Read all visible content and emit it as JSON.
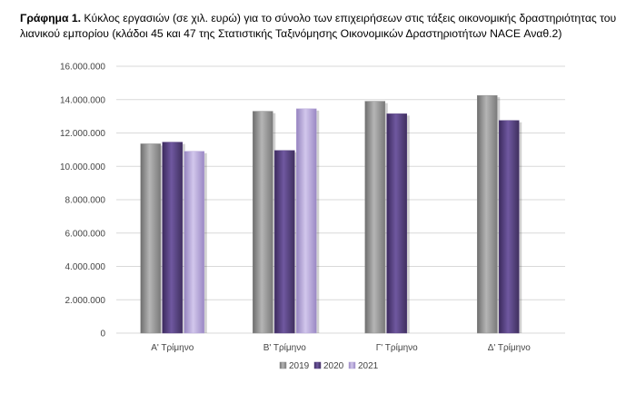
{
  "caption": {
    "label": "Γράφημα 1.",
    "text": "Κύκλος εργασιών (σε χιλ. ευρώ) για το σύνολο των επιχειρήσεων στις τάξεις οικονομικής δραστηριότητας του λιανικού εμπορίου (κλάδοι 45 και 47 της Στατιστικής Ταξινόμησης Οικονομικών Δραστηριοτήτων NACE Αναθ.2)"
  },
  "chart_data": {
    "type": "bar",
    "categories": [
      "Α' Τρίμηνο",
      "Β' Τρίμηνο",
      "Γ' Τρίμηνο",
      "Δ' Τρίμηνο"
    ],
    "series": [
      {
        "name": "2019",
        "color": "#8c8c8c",
        "values": [
          11350000,
          13300000,
          13900000,
          14250000
        ]
      },
      {
        "name": "2020",
        "color": "#5a4483",
        "values": [
          11450000,
          10950000,
          13150000,
          12750000
        ]
      },
      {
        "name": "2021",
        "color": "#b3a2d6",
        "values": [
          10900000,
          13450000,
          null,
          null
        ]
      }
    ],
    "ylim": [
      0,
      16000000
    ],
    "yticks": [
      "0",
      "2.000.000",
      "4.000.000",
      "6.000.000",
      "8.000.000",
      "10.000.000",
      "12.000.000",
      "14.000.000",
      "16.000.000"
    ],
    "ytick_values": [
      0,
      2000000,
      4000000,
      6000000,
      8000000,
      10000000,
      12000000,
      14000000,
      16000000
    ],
    "grid": true,
    "legend_position": "bottom"
  }
}
